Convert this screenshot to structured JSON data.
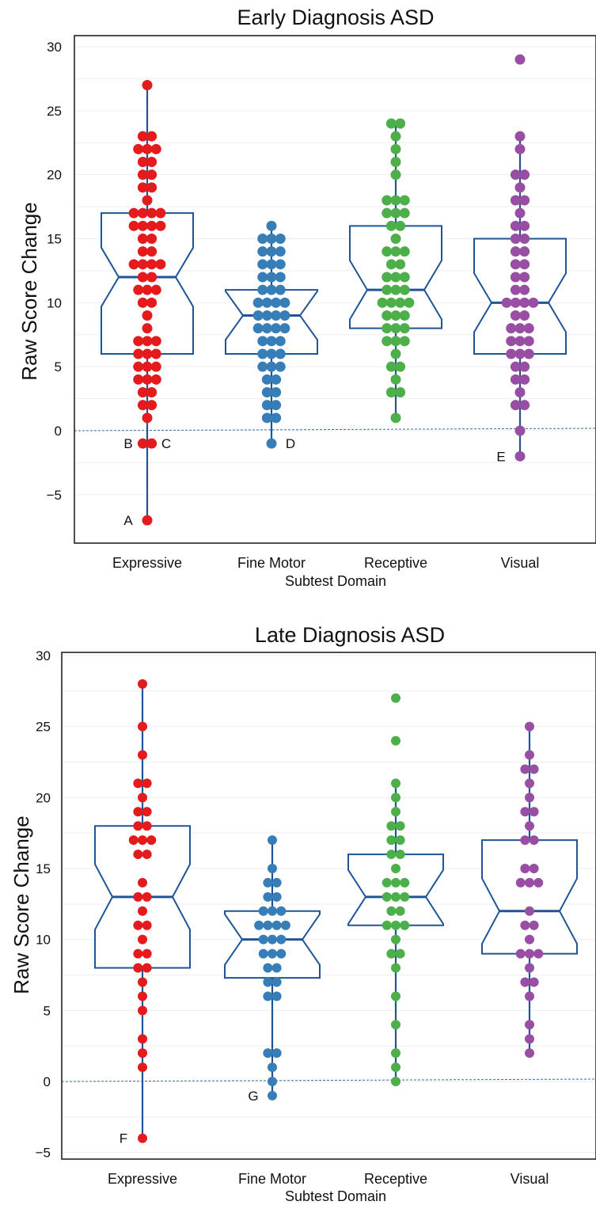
{
  "chart_data": [
    {
      "type": "box",
      "title": "Early Diagnosis ASD",
      "xlabel": "Subtest Domain",
      "ylabel": "Raw Score Change",
      "ylim": [
        -8,
        31
      ],
      "yticks": [
        -5,
        0,
        5,
        10,
        15,
        20,
        25,
        30
      ],
      "reference_line": 0,
      "categories": [
        "Expressive",
        "Fine Motor",
        "Receptive",
        "Visual"
      ],
      "colors": [
        "#e41a1c",
        "#377eb8",
        "#4daf4a",
        "#984ea3"
      ],
      "boxes": [
        {
          "q1": 6,
          "median": 12,
          "q3": 17,
          "whisker_low": -7,
          "whisker_high": 27
        },
        {
          "q1": 6,
          "median": 9,
          "q3": 11,
          "whisker_low": -1,
          "whisker_high": 16
        },
        {
          "q1": 8,
          "median": 11,
          "q3": 16,
          "whisker_low": 1,
          "whisker_high": 24
        },
        {
          "q1": 6,
          "median": 10,
          "q3": 15,
          "whisker_low": -2,
          "whisker_high": 23
        }
      ],
      "points": [
        [
          27,
          23,
          23,
          22,
          22,
          22,
          21,
          21,
          20,
          20,
          19,
          19,
          18,
          17,
          17,
          17,
          17,
          16,
          16,
          16,
          16,
          15,
          15,
          14,
          14,
          13,
          13,
          13,
          13,
          12,
          12,
          11,
          11,
          11,
          10,
          10,
          9,
          8,
          7,
          7,
          7,
          6,
          6,
          6,
          5,
          5,
          5,
          4,
          4,
          4,
          3,
          3,
          2,
          2,
          1,
          -1,
          -1,
          -7
        ],
        [
          16,
          15,
          15,
          15,
          14,
          14,
          14,
          13,
          13,
          13,
          12,
          12,
          12,
          11,
          11,
          11,
          10,
          10,
          10,
          10,
          9,
          9,
          9,
          9,
          8,
          8,
          8,
          8,
          7,
          7,
          7,
          6,
          6,
          6,
          5,
          5,
          5,
          4,
          4,
          3,
          3,
          2,
          2,
          1,
          1,
          -1
        ],
        [
          24,
          24,
          23,
          22,
          21,
          20,
          18,
          18,
          18,
          17,
          17,
          17,
          16,
          16,
          15,
          14,
          14,
          14,
          13,
          13,
          12,
          12,
          12,
          11,
          11,
          11,
          10,
          10,
          10,
          10,
          9,
          9,
          9,
          8,
          8,
          8,
          7,
          7,
          7,
          6,
          5,
          5,
          4,
          3,
          3,
          1
        ],
        [
          29,
          23,
          22,
          20,
          20,
          19,
          18,
          18,
          17,
          16,
          16,
          15,
          15,
          14,
          14,
          13,
          13,
          12,
          12,
          11,
          11,
          10,
          10,
          10,
          10,
          9,
          9,
          8,
          8,
          8,
          7,
          7,
          7,
          6,
          6,
          6,
          5,
          5,
          4,
          4,
          3,
          2,
          2,
          0,
          -2
        ]
      ],
      "annotations": [
        {
          "text": "A",
          "category": "Expressive",
          "value": -7,
          "side": "left"
        },
        {
          "text": "B",
          "category": "Expressive",
          "value": -1,
          "side": "left"
        },
        {
          "text": "C",
          "category": "Expressive",
          "value": -1,
          "side": "right"
        },
        {
          "text": "D",
          "category": "Fine Motor",
          "value": -1,
          "side": "right"
        },
        {
          "text": "E",
          "category": "Visual",
          "value": -2,
          "side": "left"
        }
      ]
    },
    {
      "type": "box",
      "title": "Late Diagnosis ASD",
      "xlabel": "Subtest Domain",
      "ylabel": "Raw Score Change",
      "ylim": [
        -6,
        30
      ],
      "yticks": [
        -5,
        0,
        5,
        10,
        15,
        20,
        25,
        30
      ],
      "reference_line": 0,
      "categories": [
        "Expressive",
        "Fine Motor",
        "Receptive",
        "Visual"
      ],
      "colors": [
        "#e41a1c",
        "#377eb8",
        "#4daf4a",
        "#984ea3"
      ],
      "boxes": [
        {
          "q1": 8,
          "median": 13,
          "q3": 18,
          "whisker_low": -4,
          "whisker_high": 28
        },
        {
          "q1": 7.3,
          "median": 10,
          "q3": 12,
          "whisker_low": -1,
          "whisker_high": 17
        },
        {
          "q1": 11,
          "median": 13,
          "q3": 16,
          "whisker_low": 0,
          "whisker_high": 21
        },
        {
          "q1": 9,
          "median": 12,
          "q3": 17,
          "whisker_low": 2,
          "whisker_high": 25
        }
      ],
      "points": [
        [
          28,
          25,
          23,
          21,
          21,
          20,
          19,
          19,
          18,
          18,
          17,
          17,
          17,
          16,
          16,
          14,
          13,
          13,
          12,
          11,
          11,
          10,
          9,
          9,
          8,
          8,
          7,
          6,
          5,
          3,
          2,
          1,
          -4
        ],
        [
          17,
          15,
          14,
          14,
          13,
          13,
          12,
          12,
          12,
          11,
          11,
          11,
          11,
          10,
          10,
          10,
          9,
          9,
          9,
          8,
          8,
          7,
          7,
          6,
          6,
          2,
          2,
          1,
          0,
          -1
        ],
        [
          27,
          24,
          21,
          20,
          19,
          18,
          18,
          17,
          17,
          16,
          16,
          15,
          14,
          14,
          14,
          13,
          13,
          13,
          12,
          12,
          11,
          11,
          11,
          10,
          9,
          9,
          8,
          6,
          4,
          2,
          1,
          0
        ],
        [
          25,
          23,
          22,
          22,
          21,
          20,
          19,
          19,
          18,
          17,
          17,
          15,
          15,
          14,
          14,
          14,
          12,
          11,
          11,
          10,
          9,
          9,
          9,
          8,
          7,
          7,
          6,
          4,
          3,
          2
        ]
      ],
      "annotations": [
        {
          "text": "F",
          "category": "Expressive",
          "value": -4,
          "side": "left"
        },
        {
          "text": "G",
          "category": "Fine Motor",
          "value": -1,
          "side": "left"
        }
      ]
    }
  ]
}
